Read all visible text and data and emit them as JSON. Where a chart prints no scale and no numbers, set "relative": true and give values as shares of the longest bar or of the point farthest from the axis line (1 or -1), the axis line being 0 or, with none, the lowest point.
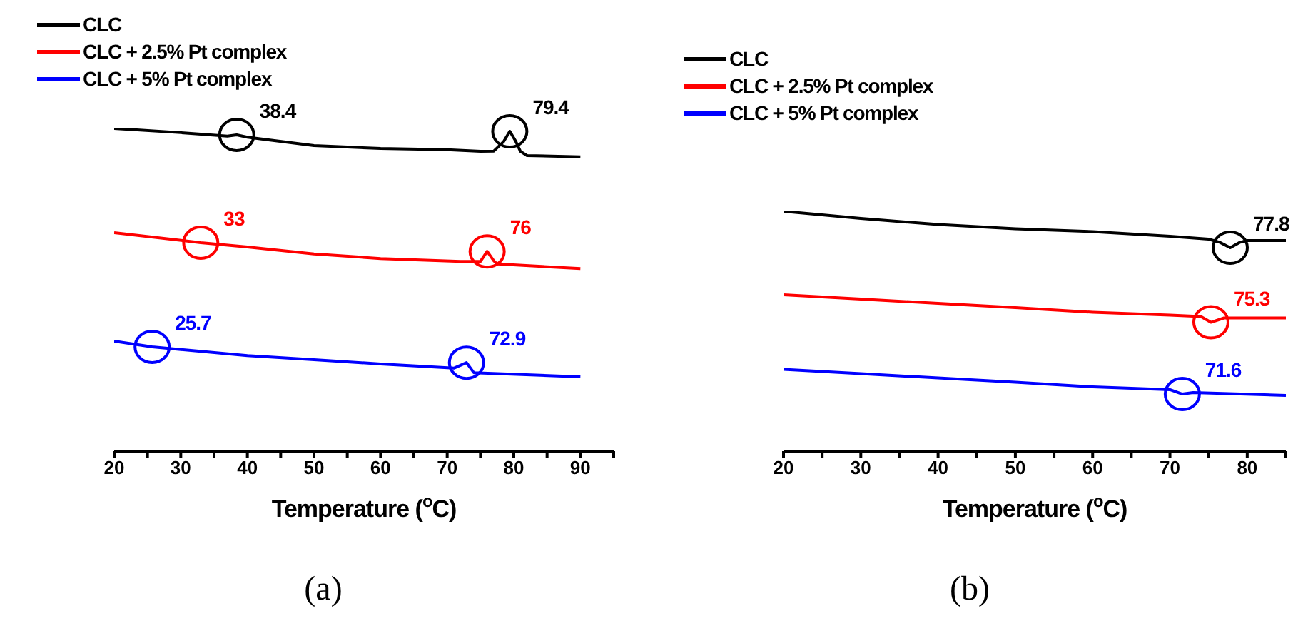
{
  "chart_data": [
    {
      "type": "line",
      "relative": true,
      "xlabel": "Temperature ($^{o}$C)",
      "xlim": [
        20,
        95
      ],
      "xticks": [
        20,
        {
          "value": 25,
          "label": null
        },
        30,
        {
          "value": 35,
          "label": null
        },
        40,
        {
          "value": 45,
          "label": null
        },
        50,
        {
          "value": 55,
          "label": null
        },
        60,
        {
          "value": 65,
          "label": null
        },
        70,
        {
          "value": 75,
          "label": null
        },
        80,
        {
          "value": 85,
          "label": null
        },
        90,
        {
          "value": 95,
          "label": null
        }
      ],
      "legend": "top left",
      "grid": false,
      "marker": "none",
      "line_style": "solid",
      "tick_labels": "x",
      "series": [
        {
          "name": "CLC",
          "color": "#000000",
          "x": [
            20,
            30,
            37,
            38.4,
            40,
            50,
            60,
            70,
            75,
            77,
            78.5,
            79.4,
            80.3,
            81,
            82,
            90
          ],
          "values": [
            1,
            0.987,
            0.976,
            0.98,
            0.973,
            0.947,
            0.938,
            0.934,
            0.929,
            0.93,
            0.96,
            0.991,
            0.96,
            0.929,
            0.916,
            0.912
          ]
        },
        {
          "name": "CLC + 2.5% Pt complex",
          "color": "#ff0000",
          "x": [
            20,
            33,
            40,
            50,
            60,
            72,
            75,
            76,
            77,
            77.5,
            90
          ],
          "values": [
            0.677,
            0.646,
            0.633,
            0.611,
            0.597,
            0.588,
            0.588,
            0.619,
            0.59,
            0.58,
            0.566
          ]
        },
        {
          "name": "CLC + 5% Pt complex",
          "color": "#0000ff",
          "x": [
            20,
            25.7,
            40,
            50,
            60,
            71,
            72.9,
            74,
            90
          ],
          "values": [
            0.341,
            0.323,
            0.296,
            0.283,
            0.27,
            0.257,
            0.274,
            0.243,
            0.23
          ]
        }
      ],
      "annotations": [
        {
          "text": "38.4",
          "x": 38.4,
          "y": 0.98
        },
        {
          "text": "79.4",
          "x": 79.4,
          "y": 0.991
        },
        {
          "text": "33",
          "x": 33,
          "y": 0.646
        },
        {
          "text": "76",
          "x": 76,
          "y": 0.619
        },
        {
          "text": "25.7",
          "x": 25.7,
          "y": 0.323
        },
        {
          "text": "72.9",
          "x": 72.9,
          "y": 0.274
        },
        "(a)"
      ]
    },
    {
      "type": "line",
      "relative": true,
      "xlabel": "Temperature ($^{o}$C)",
      "xlim": [
        20,
        85
      ],
      "xticks": [
        20,
        {
          "value": 25,
          "label": null
        },
        30,
        {
          "value": 35,
          "label": null
        },
        40,
        {
          "value": 45,
          "label": null
        },
        50,
        {
          "value": 55,
          "label": null
        },
        60,
        {
          "value": 65,
          "label": null
        },
        70,
        {
          "value": 75,
          "label": null
        },
        80,
        {
          "value": 85,
          "label": null
        }
      ],
      "legend": "top left",
      "grid": false,
      "marker": "none",
      "line_style": "solid",
      "tick_labels": "x",
      "series": [
        {
          "name": "CLC",
          "color": "#000000",
          "x": [
            20,
            30,
            40,
            50,
            60,
            70,
            75,
            76.5,
            77.8,
            79,
            80,
            85
          ],
          "values": [
            1,
            0.97,
            0.945,
            0.927,
            0.915,
            0.896,
            0.884,
            0.87,
            0.848,
            0.87,
            0.878,
            0.878
          ]
        },
        {
          "name": "CLC + 2.5% Pt complex",
          "color": "#ff0000",
          "x": [
            20,
            30,
            40,
            50,
            60,
            70,
            74,
            75.3,
            77,
            85
          ],
          "values": [
            0.652,
            0.634,
            0.616,
            0.598,
            0.579,
            0.567,
            0.561,
            0.537,
            0.555,
            0.555
          ]
        },
        {
          "name": "CLC + 5% Pt complex",
          "color": "#0000ff",
          "x": [
            20,
            30,
            40,
            50,
            60,
            70,
            71.6,
            73,
            85
          ],
          "values": [
            0.341,
            0.323,
            0.305,
            0.287,
            0.268,
            0.256,
            0.238,
            0.244,
            0.232
          ]
        }
      ],
      "annotations": [
        {
          "text": "77.8",
          "x": 77.8,
          "y": 0.848
        },
        {
          "text": "75.3",
          "x": 75.3,
          "y": 0.537
        },
        {
          "text": "71.6",
          "x": 71.6,
          "y": 0.238
        },
        "(b)"
      ]
    }
  ]
}
